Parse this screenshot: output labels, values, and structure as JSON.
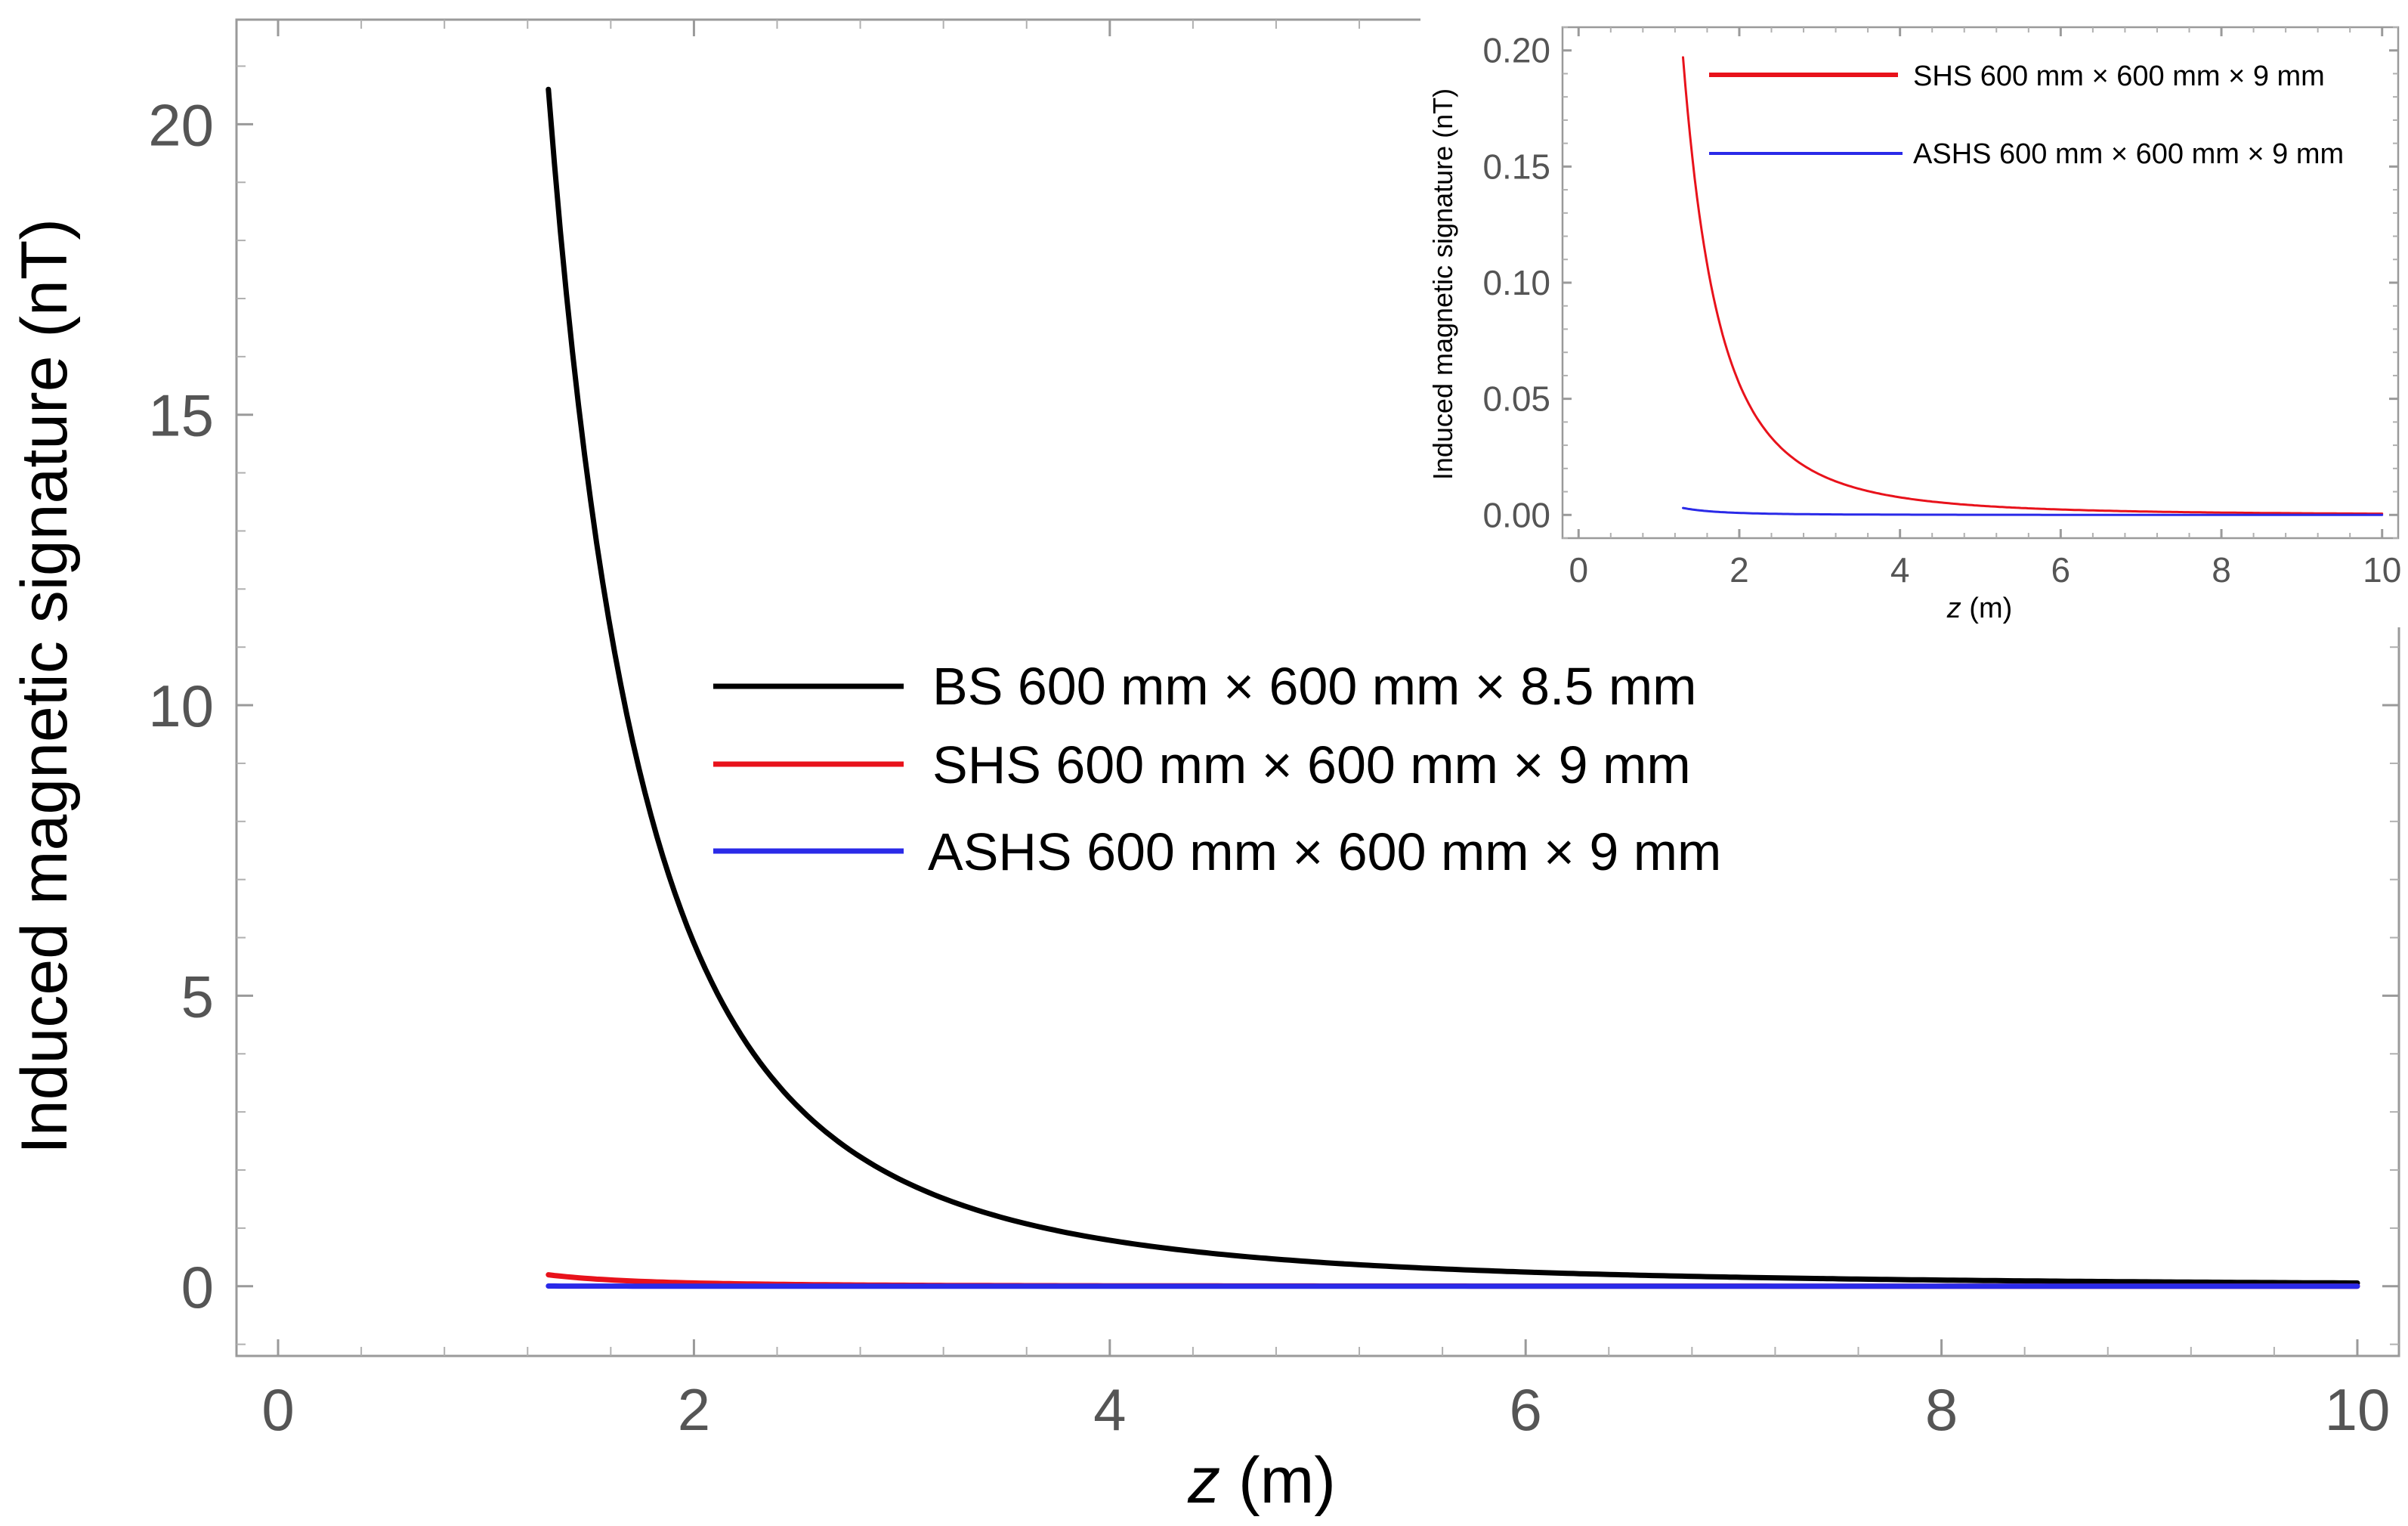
{
  "chart_data": [
    {
      "type": "line",
      "title": "",
      "xlabel_var": "z",
      "xlabel_unit": " (m)",
      "ylabel": "Induced magnetic signature  (nT)",
      "xlim": [
        -0.2,
        10.2
      ],
      "ylim": [
        -1.2,
        21.8
      ],
      "xticks": [
        0,
        2,
        4,
        6,
        8,
        10
      ],
      "xtick_labels": [
        "0",
        "2",
        "4",
        "6",
        "8",
        "10"
      ],
      "yticks": [
        0,
        5,
        10,
        15,
        20
      ],
      "ytick_labels": [
        "0",
        "5",
        "10",
        "15",
        "20"
      ],
      "legend_position": "center",
      "series": [
        {
          "name": "BS 600 mm × 600 mm × 8.5 mm",
          "color": "#000000",
          "model": "power_decay",
          "a": 20.6,
          "x0": 1.3,
          "p": 2.9,
          "x_start": 1.3,
          "x_end": 10
        },
        {
          "name": "SHS 600 mm × 600 mm × 9 mm",
          "color": "#e8121b",
          "model": "power_decay",
          "a": 0.197,
          "x0": 1.3,
          "p": 2.9,
          "x_start": 1.3,
          "x_end": 10
        },
        {
          "name": "ASHS 600 mm × 600 mm × 9 mm",
          "color": "#2a2ae8",
          "model": "power_decay",
          "a": 0.003,
          "x0": 1.3,
          "p": 2.9,
          "x_start": 1.3,
          "x_end": 10
        }
      ]
    },
    {
      "type": "line",
      "title": "",
      "xlabel_var": "z",
      "xlabel_unit": " (m)",
      "ylabel": "Induced magnetic signature  (nT)",
      "xlim": [
        -0.2,
        10.2
      ],
      "ylim": [
        -0.01,
        0.21
      ],
      "xticks": [
        0,
        2,
        4,
        6,
        8,
        10
      ],
      "xtick_labels": [
        "0",
        "2",
        "4",
        "6",
        "8",
        "10"
      ],
      "yticks": [
        0,
        0.05,
        0.1,
        0.15,
        0.2
      ],
      "ytick_labels": [
        "0.00",
        "0.05",
        "0.10",
        "0.15",
        "0.20"
      ],
      "legend_position": "top-right",
      "series": [
        {
          "name": "SHS 600 mm × 600 mm × 9 mm",
          "color": "#e8121b",
          "model": "power_decay",
          "a": 0.197,
          "x0": 1.3,
          "p": 2.9,
          "x_start": 1.3,
          "x_end": 10
        },
        {
          "name": "ASHS 600 mm × 600 mm × 9 mm",
          "color": "#2a2ae8",
          "model": "power_decay",
          "a": 0.003,
          "x0": 1.3,
          "p": 2.9,
          "x_start": 1.3,
          "x_end": 10
        }
      ]
    }
  ]
}
